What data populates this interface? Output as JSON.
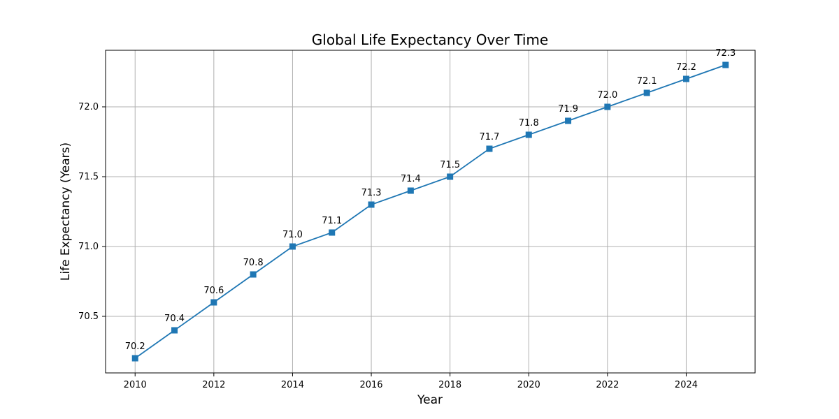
{
  "chart_data": {
    "type": "line",
    "title": "Global Life Expectancy Over Time",
    "xlabel": "Year",
    "ylabel": "Life Expectancy (Years)",
    "x": [
      2010,
      2011,
      2012,
      2013,
      2014,
      2015,
      2016,
      2017,
      2018,
      2019,
      2020,
      2021,
      2022,
      2023,
      2024,
      2025
    ],
    "series": [
      {
        "values": [
          70.2,
          70.4,
          70.6,
          70.8,
          71.0,
          71.1,
          71.3,
          71.4,
          71.5,
          71.7,
          71.8,
          71.9,
          72.0,
          72.1,
          72.2,
          72.3
        ],
        "color": "#1f77b4",
        "marker": "square"
      }
    ],
    "x_ticks": [
      "2010",
      "2012",
      "2014",
      "2016",
      "2018",
      "2020",
      "2022",
      "2024"
    ],
    "y_ticks": [
      "70.5",
      "71.0",
      "71.5",
      "72.0"
    ],
    "data_labels": [
      "70.2",
      "70.4",
      "70.6",
      "70.8",
      "71.0",
      "71.1",
      "71.3",
      "71.4",
      "71.5",
      "71.7",
      "71.8",
      "71.9",
      "72.0",
      "72.1",
      "72.2",
      "72.3"
    ],
    "xlim": [
      2009.25,
      2025.75
    ],
    "ylim": [
      70.095,
      72.405
    ],
    "grid": true,
    "legend": "none"
  }
}
